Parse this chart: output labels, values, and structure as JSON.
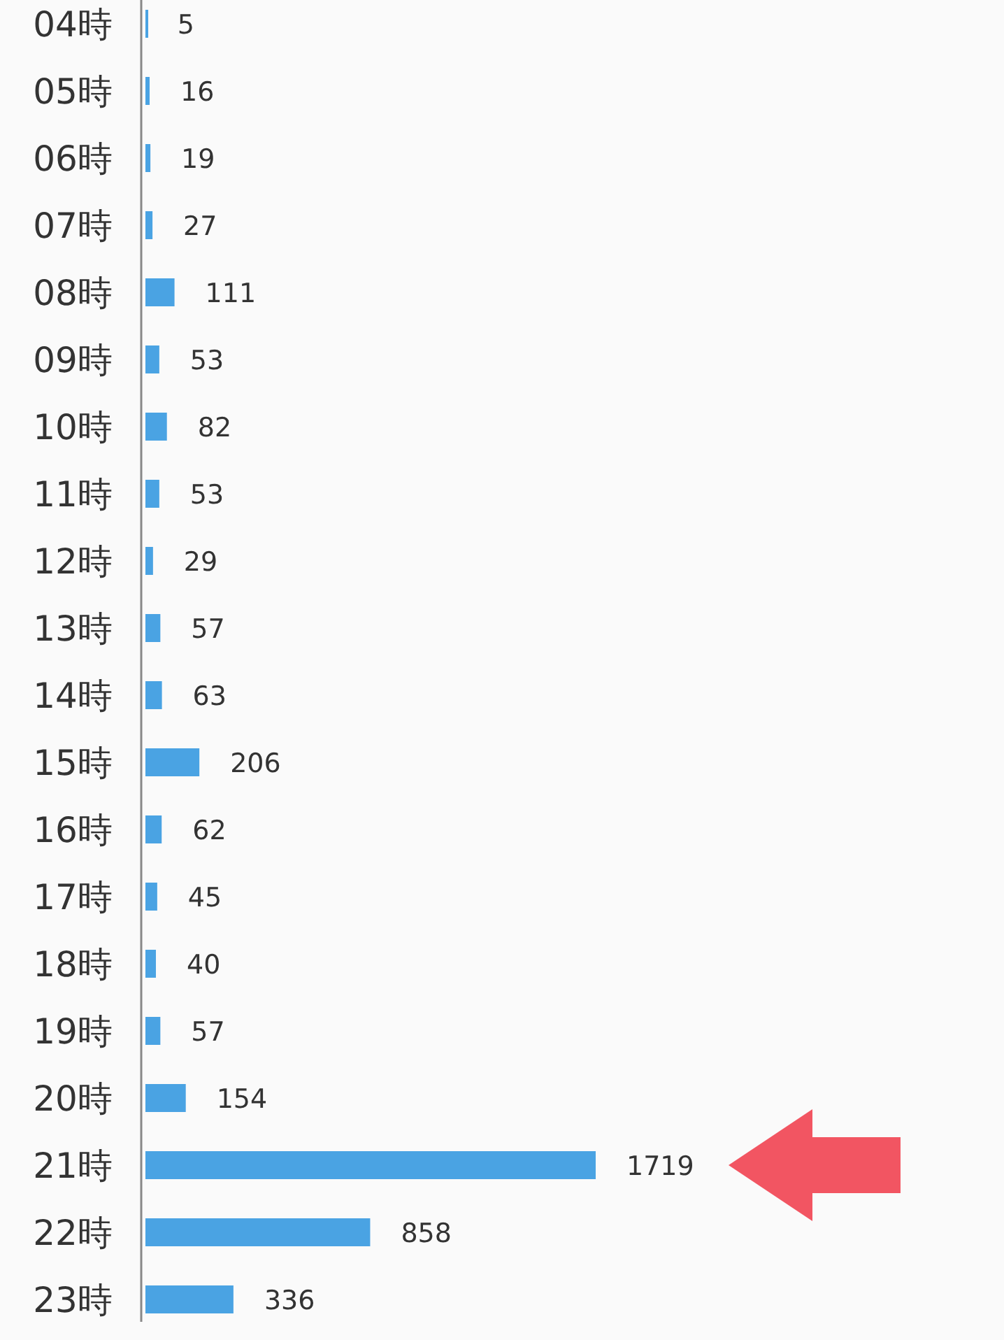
{
  "chart_data": {
    "type": "bar",
    "orientation": "horizontal",
    "categories": [
      "04時",
      "05時",
      "06時",
      "07時",
      "08時",
      "09時",
      "10時",
      "11時",
      "12時",
      "13時",
      "14時",
      "15時",
      "16時",
      "17時",
      "18時",
      "19時",
      "20時",
      "21時",
      "22時",
      "23時"
    ],
    "values": [
      5,
      16,
      19,
      27,
      111,
      53,
      82,
      53,
      29,
      57,
      63,
      206,
      62,
      45,
      40,
      57,
      154,
      1719,
      858,
      336
    ],
    "color": "#4aa3e3",
    "data_labels": true
  }
}
